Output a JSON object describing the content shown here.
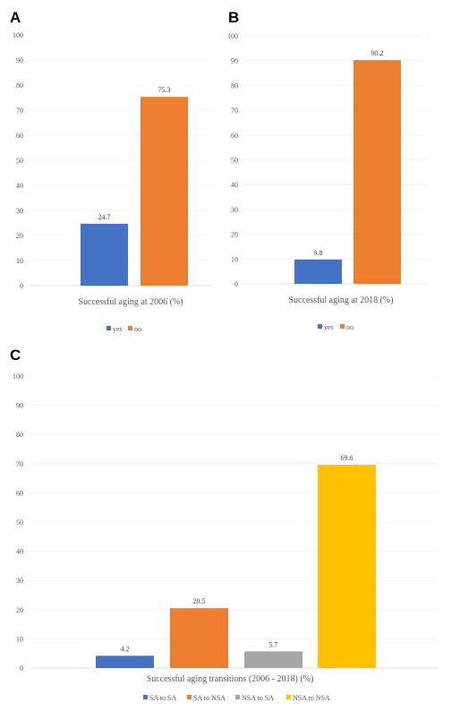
{
  "panels": [
    {
      "letter": "A"
    },
    {
      "letter": "B"
    },
    {
      "letter": "C"
    }
  ],
  "chart_data": [
    {
      "type": "bar",
      "panel": "A",
      "categories": [
        "yes",
        "no"
      ],
      "values": [
        24.7,
        75.3
      ],
      "colors": [
        "#4472C4",
        "#ED7D31"
      ],
      "data_labels": [
        "24.7",
        "75.3"
      ],
      "xlabel": "Successful aging at 2006 (%)",
      "ylim": [
        0,
        100
      ],
      "yticks": [
        0,
        10,
        20,
        30,
        40,
        50,
        60,
        70,
        80,
        90,
        100
      ],
      "grid": true,
      "legend": {
        "position": "bottom",
        "entries": [
          "yes",
          "no"
        ]
      }
    },
    {
      "type": "bar",
      "panel": "B",
      "categories": [
        "yes",
        "no"
      ],
      "values": [
        9.8,
        90.2
      ],
      "colors": [
        "#4472C4",
        "#ED7D31"
      ],
      "data_labels": [
        "9.8",
        "90.2"
      ],
      "xlabel": "Successful aging at 2018 (%)",
      "ylim": [
        0,
        100
      ],
      "yticks": [
        0,
        10,
        20,
        30,
        40,
        50,
        60,
        70,
        80,
        90,
        100
      ],
      "grid": true,
      "legend": {
        "position": "bottom",
        "entries": [
          "yes",
          "no"
        ]
      }
    },
    {
      "type": "bar",
      "panel": "C",
      "categories": [
        "SA to SA",
        "SA to NSA",
        "NSA to SA",
        "NSA to NSA"
      ],
      "values": [
        4.2,
        20.5,
        5.7,
        69.6
      ],
      "colors": [
        "#4472C4",
        "#ED7D31",
        "#A5A5A5",
        "#FFC000"
      ],
      "data_labels": [
        "4.2",
        "20.5",
        "5.7",
        "69.6"
      ],
      "xlabel": "Successful aging transitions (2006 - 2018) (%)",
      "ylim": [
        0,
        100
      ],
      "yticks": [
        0,
        10,
        20,
        30,
        40,
        50,
        60,
        70,
        80,
        90,
        100
      ],
      "grid": true,
      "legend": {
        "position": "bottom",
        "entries": [
          "SA to SA",
          "SA to NSA",
          "NSA to SA",
          "NSA to NSA"
        ]
      }
    }
  ]
}
